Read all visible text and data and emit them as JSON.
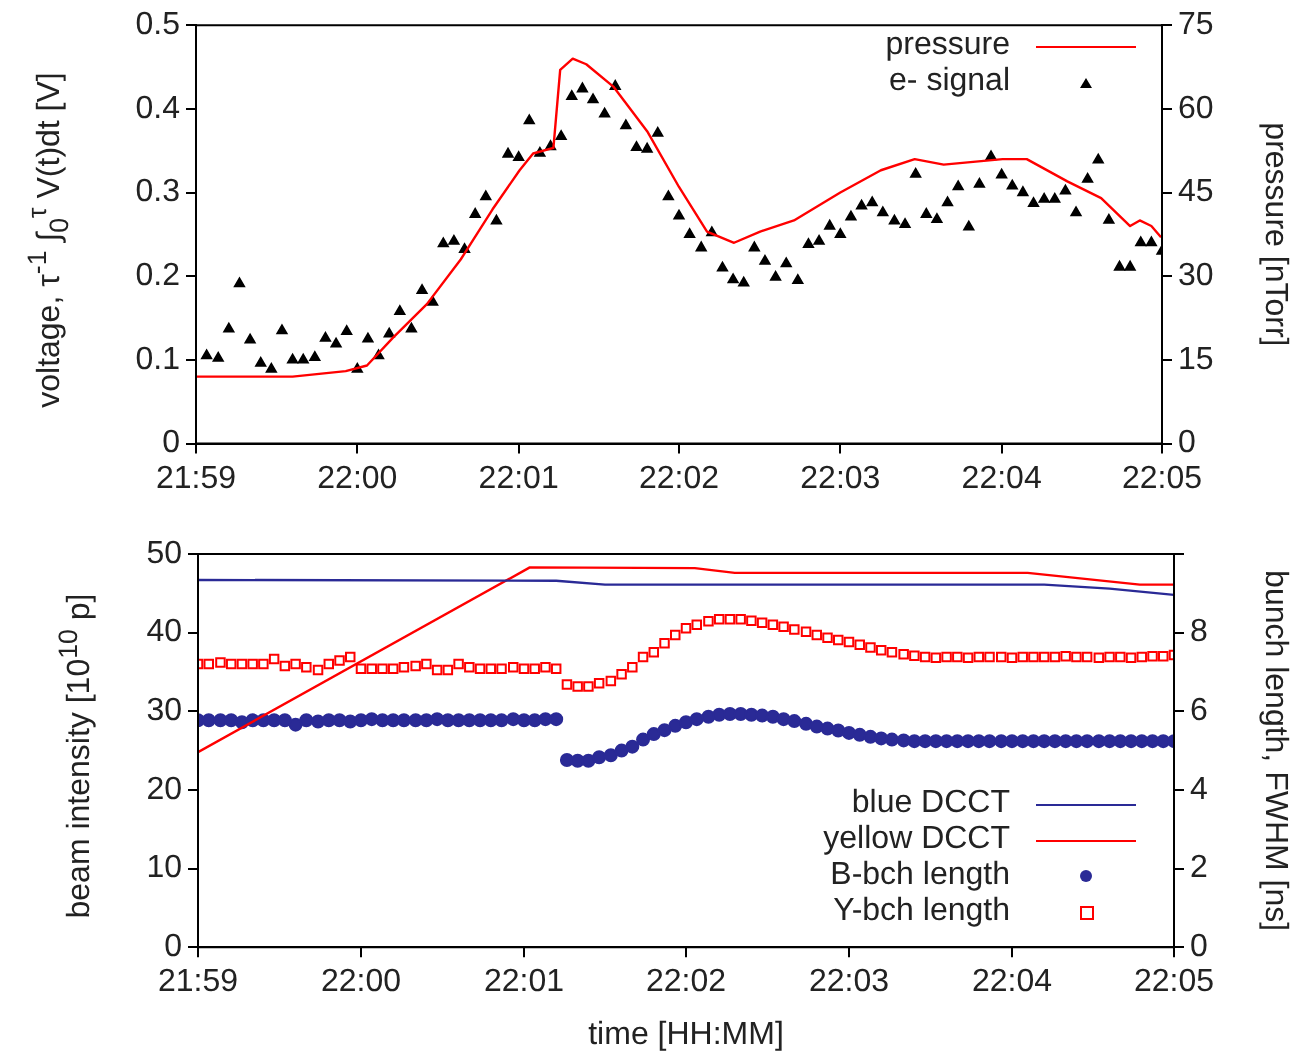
{
  "chart_data": [
    {
      "type": "line",
      "ylabel": "voltage, τ$^{-1}$ ∫$_{0}$$^{τ}$ V(t)dt  [V]",
      "y2label": "pressure [nTorr]",
      "legend": "top right",
      "xlim": [
        21.9833,
        22.0833
      ],
      "xticks": [
        {
          "value": 21.9833,
          "label": "21:59"
        },
        {
          "value": 22,
          "label": "22:00"
        },
        {
          "value": 22.0167,
          "label": "22:01"
        },
        {
          "value": 22.0333,
          "label": "22:02"
        },
        {
          "value": 22.05,
          "label": "22:03"
        },
        {
          "value": 22.0667,
          "label": "22:04"
        },
        {
          "value": 22.0833,
          "label": "22:05"
        }
      ],
      "ylim": [
        0,
        0.5
      ],
      "yticks": [
        0,
        0.1,
        0.2,
        0.3,
        0.4,
        0.5
      ],
      "y2lim": [
        0,
        75
      ],
      "y2ticks": [
        0,
        15,
        30,
        45,
        60,
        75
      ],
      "x": [
        21.9844,
        21.9856,
        21.9867,
        21.9878,
        21.9889,
        21.99,
        21.9911,
        21.9922,
        21.9933,
        21.9944,
        21.9956,
        21.9967,
        21.9978,
        21.9989,
        22,
        22.0011,
        22.0022,
        22.0033,
        22.0044,
        22.0056,
        22.0067,
        22.0078,
        22.0089,
        22.01,
        22.0111,
        22.0122,
        22.0133,
        22.0144,
        22.0156,
        22.0167,
        22.0178,
        22.0189,
        22.02,
        22.0211,
        22.0222,
        22.0233,
        22.0244,
        22.0256,
        22.0267,
        22.0278,
        22.0289,
        22.03,
        22.0311,
        22.0322,
        22.0333,
        22.0344,
        22.0356,
        22.0367,
        22.0378,
        22.0389,
        22.04,
        22.0411,
        22.0422,
        22.0433,
        22.0444,
        22.0456,
        22.0467,
        22.0478,
        22.0489,
        22.05,
        22.0511,
        22.0522,
        22.0533,
        22.0544,
        22.0556,
        22.0567,
        22.0578,
        22.0589,
        22.06,
        22.0611,
        22.0622,
        22.0633,
        22.0644,
        22.0656,
        22.0667,
        22.0678,
        22.0689,
        22.07,
        22.0711,
        22.0722,
        22.0733,
        22.0744,
        22.0756,
        22.0767,
        22.0778,
        22.0789,
        22.08,
        22.0811,
        22.0822,
        22.0833
      ],
      "series": [
        {
          "name": "pressure",
          "type": "line",
          "axis": "y2",
          "color": "#ff0000",
          "marker": "none",
          "line_style": "solid",
          "x": [
            21.9833,
            21.9933,
            21.9988,
            22.001,
            22.0037,
            22.0072,
            22.0107,
            22.014,
            22.0168,
            22.0182,
            22.0203,
            22.021,
            22.0223,
            22.0237,
            22.0265,
            22.03,
            22.0333,
            22.0362,
            22.039,
            22.0417,
            22.0452,
            22.05,
            22.0542,
            22.0577,
            22.0607,
            22.0668,
            22.0693,
            22.0735,
            22.077,
            22.08,
            22.081,
            22.0822,
            22.0832
          ],
          "values": [
            12,
            12,
            13,
            14,
            19,
            25,
            33,
            42,
            49,
            52,
            53,
            67,
            69,
            68,
            64,
            56,
            46,
            38,
            36,
            38,
            40,
            45,
            49,
            51,
            50,
            51,
            51,
            47,
            44,
            39,
            40,
            39,
            37
          ]
        },
        {
          "name": "e- signal",
          "type": "scatter",
          "color": "#000000",
          "marker": "triangle",
          "values": [
            0.105,
            0.102,
            0.137,
            0.191,
            0.124,
            0.096,
            0.089,
            0.135,
            0.1,
            0.1,
            0.103,
            0.126,
            0.119,
            0.134,
            0.089,
            0.125,
            0.105,
            0.131,
            0.158,
            0.137,
            0.183,
            0.169,
            0.239,
            0.242,
            0.232,
            0.274,
            0.295,
            0.266,
            0.346,
            0.342,
            0.386,
            0.347,
            0.355,
            0.367,
            0.415,
            0.424,
            0.411,
            0.394,
            0.427,
            0.38,
            0.354,
            0.352,
            0.371,
            0.295,
            0.272,
            0.25,
            0.234,
            0.252,
            0.21,
            0.196,
            0.192,
            0.234,
            0.218,
            0.199,
            0.215,
            0.195,
            0.238,
            0.242,
            0.26,
            0.25,
            0.271,
            0.284,
            0.288,
            0.276,
            0.266,
            0.262,
            0.322,
            0.274,
            0.268,
            0.288,
            0.307,
            0.259,
            0.31,
            0.343,
            0.321,
            0.308,
            0.3,
            0.287,
            0.292,
            0.292,
            0.302,
            0.276,
            0.316,
            0.339,
            0.267,
            0.211,
            0.211,
            0.24,
            0.24,
            0.23
          ]
        }
      ]
    },
    {
      "type": "line",
      "xlabel": "time [HH:MM]",
      "ylabel": "beam intensity [10$^{10}$ p]",
      "y2label": "bunch length, FWHM [ns]",
      "legend": "bottom right",
      "xlim": [
        21.9833,
        22.0833
      ],
      "xticks": [
        {
          "value": 21.9833,
          "label": "21:59"
        },
        {
          "value": 22,
          "label": "22:00"
        },
        {
          "value": 22.0167,
          "label": "22:01"
        },
        {
          "value": 22.0333,
          "label": "22:02"
        },
        {
          "value": 22.05,
          "label": "22:03"
        },
        {
          "value": 22.0667,
          "label": "22:04"
        },
        {
          "value": 22.0833,
          "label": "22:05"
        }
      ],
      "ylim": [
        0,
        50
      ],
      "yticks": [
        0,
        10,
        20,
        30,
        40,
        50
      ],
      "y2lim": [
        0,
        10
      ],
      "y2ticks": [
        0,
        2,
        4,
        6,
        8,
        {
          "value": 10,
          "label": null
        }
      ],
      "x": [
        21.9833,
        21.9844,
        21.9856,
        21.9867,
        21.9878,
        21.9889,
        21.99,
        21.9911,
        21.9922,
        21.9933,
        21.9944,
        21.9956,
        21.9967,
        21.9978,
        21.9989,
        22,
        22.0011,
        22.0022,
        22.0033,
        22.0044,
        22.0056,
        22.0067,
        22.0078,
        22.0089,
        22.01,
        22.0111,
        22.0122,
        22.0133,
        22.0144,
        22.0156,
        22.0167,
        22.0178,
        22.0189,
        22.02,
        22.0211,
        22.0222,
        22.0233,
        22.0244,
        22.0256,
        22.0267,
        22.0278,
        22.0289,
        22.03,
        22.0311,
        22.0322,
        22.0333,
        22.0344,
        22.0356,
        22.0367,
        22.0378,
        22.0389,
        22.04,
        22.0411,
        22.0422,
        22.0433,
        22.0444,
        22.0456,
        22.0467,
        22.0478,
        22.0489,
        22.05,
        22.0511,
        22.0522,
        22.0533,
        22.0544,
        22.0556,
        22.0567,
        22.0578,
        22.0589,
        22.06,
        22.0611,
        22.0622,
        22.0633,
        22.0644,
        22.0656,
        22.0667,
        22.0678,
        22.0689,
        22.07,
        22.0711,
        22.0722,
        22.0733,
        22.0744,
        22.0756,
        22.0767,
        22.0778,
        22.0789,
        22.08,
        22.0811,
        22.0822,
        22.0833
      ],
      "series": [
        {
          "name": "blue DCCT",
          "type": "line",
          "color": "#2a2a96",
          "marker": "none",
          "line_style": "solid",
          "x": [
            21.9833,
            22.02,
            22.025,
            22.07,
            22.0767,
            22.0833
          ],
          "values": [
            46.7,
            46.6,
            46.1,
            46.1,
            45.6,
            44.8
          ]
        },
        {
          "name": "yellow DCCT",
          "type": "line",
          "color": "#ff0000",
          "marker": "none",
          "line_style": "solid",
          "x": [
            21.9833,
            22.0173,
            22.0342,
            22.0383,
            22.0683,
            22.0798,
            22.0833
          ],
          "values": [
            24.8,
            48.3,
            48.2,
            47.6,
            47.6,
            46.1,
            46.1
          ]
        },
        {
          "name": "B-bch length",
          "type": "scatter",
          "axis": "y2",
          "color": "#2a2a96",
          "marker": "circle",
          "values": [
            5.77,
            5.77,
            5.77,
            5.77,
            5.72,
            5.77,
            5.77,
            5.77,
            5.77,
            5.66,
            5.77,
            5.74,
            5.77,
            5.77,
            5.74,
            5.77,
            5.8,
            5.77,
            5.77,
            5.77,
            5.77,
            5.77,
            5.8,
            5.77,
            5.77,
            5.77,
            5.77,
            5.77,
            5.77,
            5.8,
            5.77,
            5.77,
            5.8,
            5.8,
            4.76,
            4.74,
            4.74,
            4.83,
            4.88,
            5,
            5.1,
            5.28,
            5.42,
            5.52,
            5.63,
            5.72,
            5.8,
            5.86,
            5.91,
            5.93,
            5.93,
            5.91,
            5.89,
            5.86,
            5.8,
            5.75,
            5.68,
            5.61,
            5.56,
            5.51,
            5.45,
            5.4,
            5.35,
            5.31,
            5.28,
            5.26,
            5.24,
            5.24,
            5.24,
            5.24,
            5.24,
            5.24,
            5.24,
            5.24,
            5.24,
            5.24,
            5.24,
            5.24,
            5.24,
            5.24,
            5.24,
            5.24,
            5.24,
            5.24,
            5.24,
            5.24,
            5.24,
            5.24,
            5.24,
            5.24,
            5.24
          ]
        },
        {
          "name": "Y-bch length",
          "type": "scatter",
          "axis": "y2",
          "color": "#ff0000",
          "marker": "square",
          "values": [
            7.2,
            7.2,
            7.24,
            7.2,
            7.2,
            7.2,
            7.2,
            7.33,
            7.15,
            7.2,
            7.12,
            7.05,
            7.2,
            7.29,
            7.38,
            7.08,
            7.08,
            7.08,
            7.08,
            7.12,
            7.15,
            7.2,
            7.05,
            7.05,
            7.2,
            7.12,
            7.08,
            7.08,
            7.08,
            7.12,
            7.08,
            7.08,
            7.12,
            7.08,
            6.68,
            6.63,
            6.63,
            6.71,
            6.77,
            6.94,
            7.12,
            7.38,
            7.5,
            7.73,
            7.94,
            8.11,
            8.2,
            8.29,
            8.34,
            8.34,
            8.34,
            8.3,
            8.25,
            8.2,
            8.15,
            8.08,
            8.02,
            7.94,
            7.87,
            7.81,
            7.76,
            7.69,
            7.62,
            7.55,
            7.5,
            7.45,
            7.41,
            7.38,
            7.36,
            7.38,
            7.38,
            7.36,
            7.38,
            7.38,
            7.38,
            7.36,
            7.38,
            7.38,
            7.38,
            7.38,
            7.4,
            7.38,
            7.38,
            7.36,
            7.38,
            7.38,
            7.36,
            7.38,
            7.4,
            7.4,
            7.43
          ]
        }
      ]
    }
  ]
}
